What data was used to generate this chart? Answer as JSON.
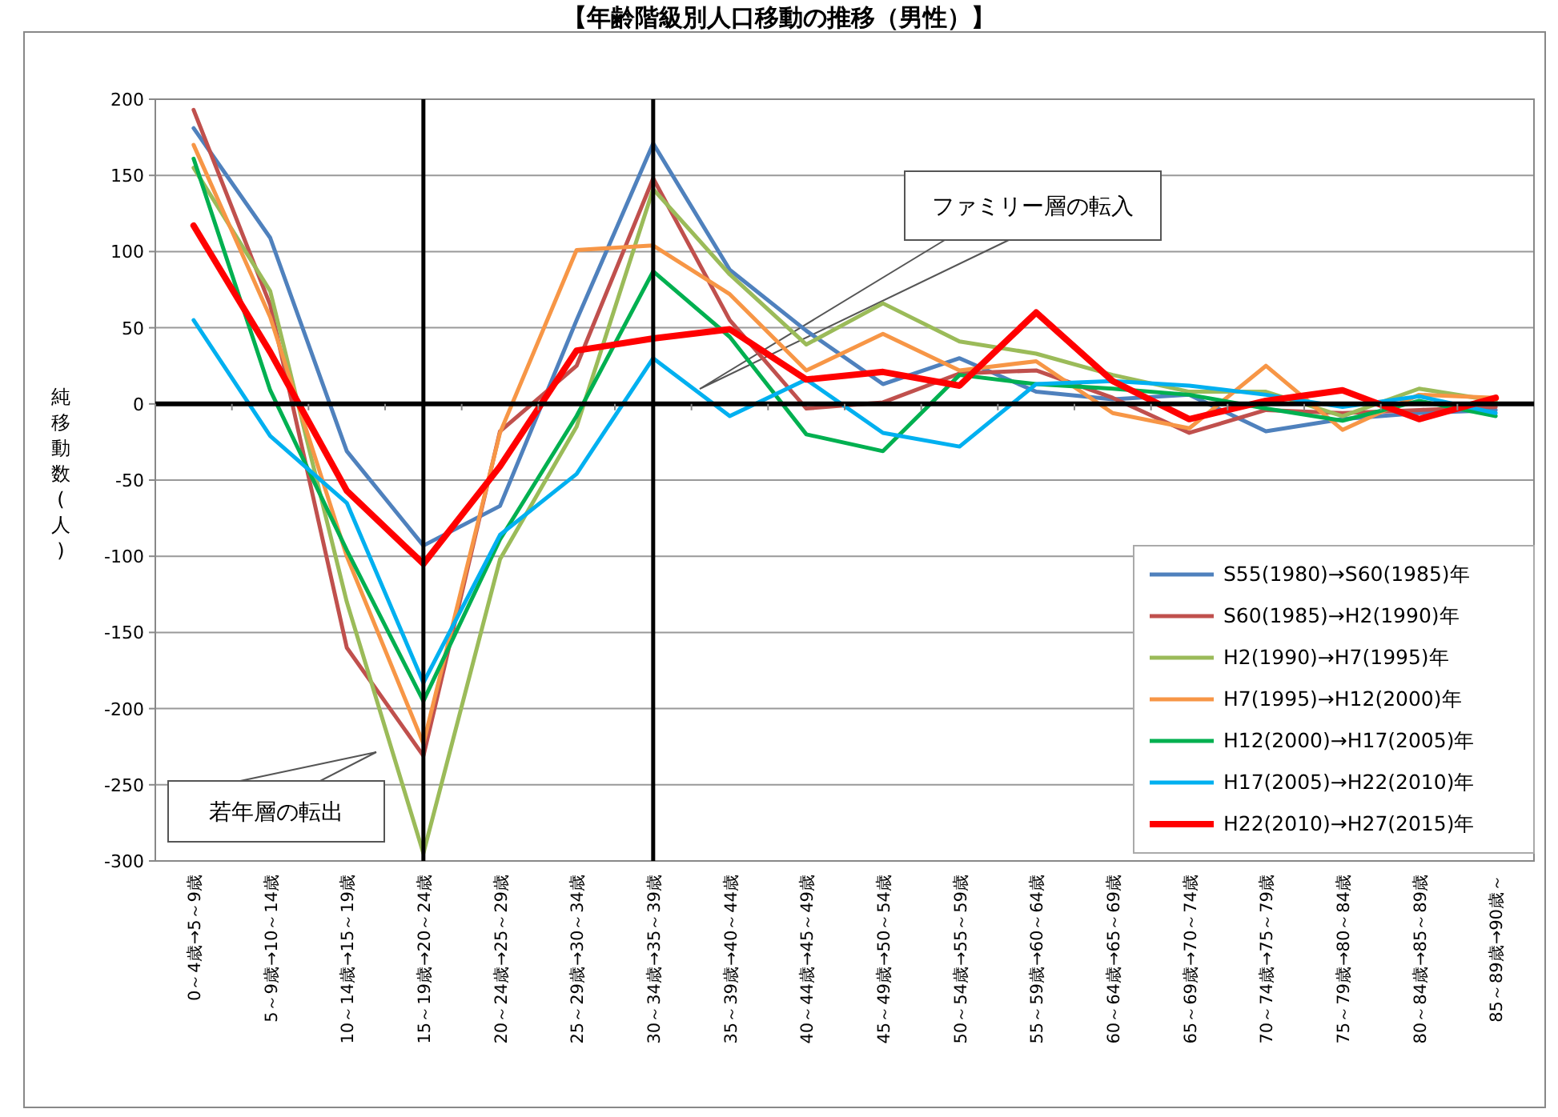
{
  "chart_data": {
    "type": "line",
    "title": "【年齢階級別人口移動の推移（男性）】",
    "ylabel": "純移動数(人)",
    "categories": [
      "0～4歳→5～9歳",
      "5～9歳→10～14歳",
      "10～14歳→15～19歳",
      "15～19歳→20～24歳",
      "20～24歳→25～29歳",
      "25～29歳→30～34歳",
      "30～34歳→35～39歳",
      "35～39歳→40～44歳",
      "40～44歳→45～49歳",
      "45～49歳→50～54歳",
      "50～54歳→55～59歳",
      "55～59歳→60～64歳",
      "60～64歳→65～69歳",
      "65～69歳→70～74歳",
      "70～74歳→75～79歳",
      "75～79歳→80～84歳",
      "80～84歳→85～89歳",
      "85～89歳→90歳～"
    ],
    "series": [
      {
        "name": "S55(1980)→S60(1985)年",
        "color": "#4f81bd",
        "values": [
          181,
          109,
          -31,
          -93,
          -67,
          55,
          171,
          88,
          48,
          13,
          30,
          8,
          3,
          6,
          -18,
          -10,
          -6,
          -4
        ]
      },
      {
        "name": "S60(1985)→H2(1990)年",
        "color": "#c0504d",
        "values": [
          193,
          65,
          -160,
          -231,
          -18,
          25,
          148,
          55,
          -3,
          1,
          20,
          22,
          4,
          -19,
          -4,
          -6,
          -4,
          -2
        ]
      },
      {
        "name": "H2(1990)→H7(1995)年",
        "color": "#9bbb59",
        "values": [
          155,
          74,
          -130,
          -295,
          -102,
          -15,
          141,
          85,
          39,
          66,
          41,
          33,
          19,
          8,
          8,
          -8,
          10,
          2
        ]
      },
      {
        "name": "H7(1995)→H12(2000)年",
        "color": "#f79646",
        "values": [
          170,
          57,
          -100,
          -223,
          -19,
          101,
          104,
          72,
          22,
          46,
          22,
          28,
          -6,
          -16,
          25,
          -17,
          6,
          4
        ]
      },
      {
        "name": "H12(2000)→H17(2005)年",
        "color": "#00b050",
        "values": [
          161,
          9,
          -96,
          -195,
          -89,
          -8,
          87,
          44,
          -20,
          -31,
          19,
          13,
          10,
          6,
          -3,
          -11,
          2,
          -8
        ]
      },
      {
        "name": "H17(2005)→H22(2010)年",
        "color": "#00b0f0",
        "values": [
          55,
          -21,
          -65,
          -183,
          -86,
          -46,
          30,
          -8,
          16,
          -19,
          -28,
          13,
          15,
          12,
          6,
          -2,
          5,
          -6
        ]
      },
      {
        "name": "H22(2010)→H27(2015)年",
        "color": "#ff0000",
        "values": [
          117,
          34,
          -57,
          -105,
          -41,
          35,
          43,
          49,
          16,
          21,
          12,
          60,
          15,
          -10,
          2,
          9,
          -10,
          4
        ]
      }
    ],
    "ylim": [
      -300,
      200
    ],
    "yticks": [
      -300,
      -250,
      -200,
      -150,
      -100,
      -50,
      0,
      50,
      100,
      150,
      200
    ],
    "grid": "y",
    "legend": "bottom right",
    "line_style": "solid",
    "marker": "none",
    "ref_lines": [
      {
        "axis": "x",
        "value": "15～19歳→20～24歳",
        "color": "#000000"
      },
      {
        "axis": "x",
        "value": "30～34歳→35～39歳",
        "color": "#000000"
      },
      {
        "axis": "y",
        "value": 0,
        "color": "#000000"
      }
    ],
    "annotations": [
      "若年層の転出",
      "ファミリー層の転入"
    ]
  }
}
